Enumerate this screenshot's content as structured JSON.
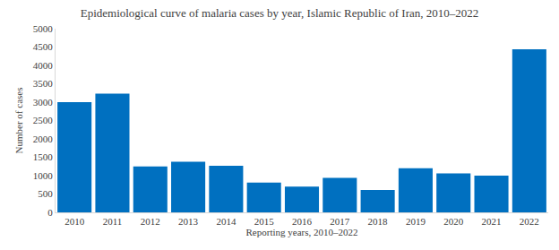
{
  "chart_data": {
    "type": "bar",
    "title": "Epidemiological curve of malaria cases by year, Islamic Republic of Iran, 2010–2022",
    "x_label": "Reporting years, 2010–2022",
    "y_label": "Number of cases",
    "categories": [
      "2010",
      "2011",
      "2012",
      "2013",
      "2014",
      "2015",
      "2016",
      "2017",
      "2018",
      "2019",
      "2020",
      "2021",
      "2022"
    ],
    "values": [
      3000,
      3230,
      1250,
      1380,
      1270,
      810,
      700,
      940,
      610,
      1200,
      1060,
      1000,
      4440
    ],
    "color": "#0070c0",
    "ylim": [
      0,
      5000
    ],
    "yticks": [
      0,
      500,
      1000,
      1500,
      2000,
      2500,
      3000,
      3500,
      4000,
      4500,
      5000
    ],
    "grid": false
  }
}
